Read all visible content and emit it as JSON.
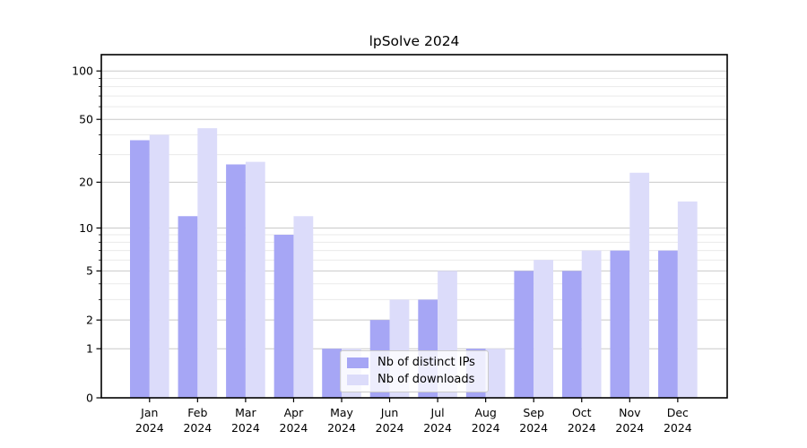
{
  "chart_data": {
    "type": "bar",
    "title": "lpSolve 2024",
    "categories": [
      "Jan",
      "Feb",
      "Mar",
      "Apr",
      "May",
      "Jun",
      "Jul",
      "Aug",
      "Sep",
      "Oct",
      "Nov",
      "Dec"
    ],
    "x_year": "2024",
    "series": [
      {
        "name": "Nb of distinct IPs",
        "color": "#a6a6f5",
        "values": [
          37,
          12,
          26,
          9,
          1,
          2,
          3,
          1,
          5,
          5,
          7,
          7
        ]
      },
      {
        "name": "Nb of downloads",
        "color": "#dcdcfa",
        "values": [
          40,
          44,
          27,
          12,
          1,
          3,
          5,
          1,
          6,
          7,
          23,
          15
        ]
      }
    ],
    "yscale": "log10(1+v)",
    "yticks": [
      0,
      1,
      2,
      5,
      10,
      20,
      50,
      100
    ],
    "minor_gridlines": [
      3,
      4,
      6,
      7,
      8,
      9,
      30,
      40,
      60,
      70,
      80,
      90
    ],
    "ylim": [
      0,
      127
    ],
    "grid": true,
    "legend_position": "lower-center",
    "colors": {
      "major_grid": "#c9c9c9",
      "minor_grid": "#eaeaea",
      "axis": "#000000",
      "background": "#ffffff"
    }
  }
}
